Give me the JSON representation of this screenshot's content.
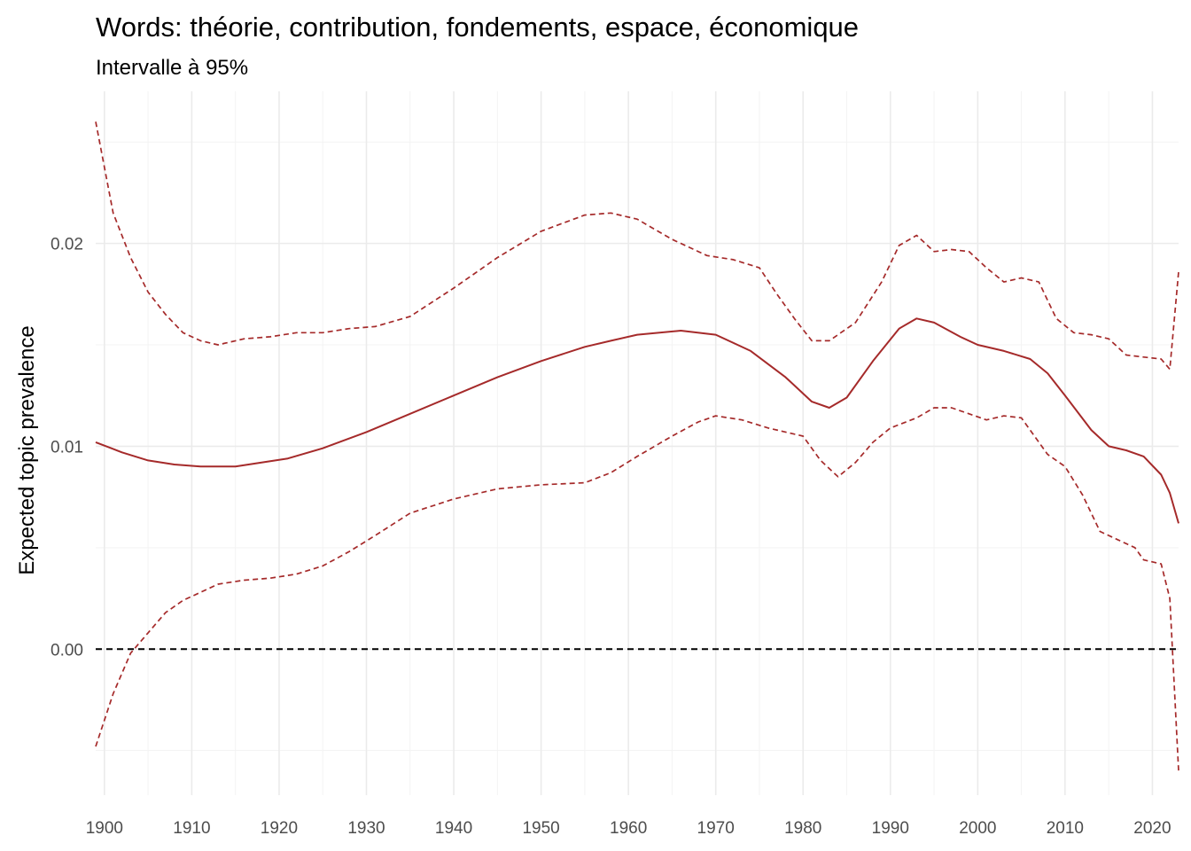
{
  "chart_data": {
    "type": "line",
    "title": "Words: théorie, contribution, fondements, espace, économique",
    "subtitle": "Intervalle à 95%",
    "xlabel": "",
    "ylabel": "Expected topic prevalence",
    "xlim": [
      1899,
      2023
    ],
    "ylim": [
      -0.0072,
      0.0275
    ],
    "x_ticks": [
      1900,
      1910,
      1920,
      1930,
      1940,
      1950,
      1960,
      1970,
      1980,
      1990,
      2000,
      2010,
      2020
    ],
    "y_ticks": [
      0.0,
      0.01,
      0.02
    ],
    "y_tick_labels": [
      "0.00",
      "0.01",
      "0.02"
    ],
    "grid": true,
    "reference_line": {
      "y": 0.0,
      "style": "dashed",
      "color": "#000000"
    },
    "series": [
      {
        "style": "solid",
        "color": "#a52a2a",
        "x": [
          1899,
          1902,
          1905,
          1908,
          1911,
          1915,
          1918,
          1921,
          1925,
          1930,
          1935,
          1940,
          1945,
          1950,
          1955,
          1958,
          1961,
          1966,
          1970,
          1974,
          1978,
          1981,
          1983,
          1985,
          1988,
          1991,
          1993,
          1995,
          1998,
          2000,
          2003,
          2006,
          2008,
          2010,
          2013,
          2015,
          2017,
          2019,
          2021,
          2022,
          2023
        ],
        "y": [
          0.0102,
          0.0097,
          0.0093,
          0.0091,
          0.009,
          0.009,
          0.0092,
          0.0094,
          0.0099,
          0.0107,
          0.0116,
          0.0125,
          0.0134,
          0.0142,
          0.0149,
          0.0152,
          0.0155,
          0.0157,
          0.0155,
          0.0147,
          0.0134,
          0.0122,
          0.0119,
          0.0124,
          0.0142,
          0.0158,
          0.0163,
          0.0161,
          0.0154,
          0.015,
          0.0147,
          0.0143,
          0.0136,
          0.0125,
          0.0108,
          0.01,
          0.0098,
          0.0095,
          0.0086,
          0.0077,
          0.0062
        ]
      },
      {
        "style": "dashed",
        "color": "#a52a2a",
        "x": [
          1899,
          1901,
          1903,
          1905,
          1907,
          1909,
          1911,
          1913,
          1916,
          1919,
          1922,
          1925,
          1928,
          1931,
          1935,
          1940,
          1945,
          1950,
          1955,
          1958,
          1961,
          1965,
          1969,
          1972,
          1975,
          1977,
          1979,
          1981,
          1983,
          1986,
          1989,
          1991,
          1993,
          1995,
          1997,
          1999,
          2001,
          2003,
          2005,
          2007,
          2009,
          2011,
          2013,
          2015,
          2017,
          2019,
          2021,
          2022,
          2023
        ],
        "y": [
          0.026,
          0.0215,
          0.0193,
          0.0176,
          0.0165,
          0.0156,
          0.0152,
          0.015,
          0.0153,
          0.0154,
          0.0156,
          0.0156,
          0.0158,
          0.0159,
          0.0164,
          0.0178,
          0.0193,
          0.0206,
          0.0214,
          0.0215,
          0.0212,
          0.0202,
          0.0194,
          0.0192,
          0.0188,
          0.0175,
          0.0163,
          0.0152,
          0.0152,
          0.0161,
          0.0181,
          0.0199,
          0.0204,
          0.0196,
          0.0197,
          0.0196,
          0.0188,
          0.0181,
          0.0183,
          0.0181,
          0.0163,
          0.0156,
          0.0155,
          0.0153,
          0.0145,
          0.0144,
          0.0143,
          0.0138,
          0.0186
        ]
      },
      {
        "style": "dashed",
        "color": "#a52a2a",
        "x": [
          1899,
          1901,
          1903,
          1905,
          1907,
          1909,
          1911,
          1913,
          1916,
          1919,
          1922,
          1925,
          1928,
          1931,
          1935,
          1940,
          1945,
          1950,
          1955,
          1958,
          1961,
          1965,
          1968,
          1970,
          1973,
          1976,
          1980,
          1982,
          1984,
          1986,
          1988,
          1990,
          1993,
          1995,
          1997,
          1999,
          2001,
          2003,
          2005,
          2008,
          2010,
          2012,
          2014,
          2016,
          2018,
          2019,
          2021,
          2022,
          2023
        ],
        "y": [
          -0.0048,
          -0.0022,
          -0.0002,
          0.0008,
          0.0018,
          0.0024,
          0.0028,
          0.0032,
          0.0034,
          0.0035,
          0.0037,
          0.0041,
          0.0048,
          0.0056,
          0.0067,
          0.0074,
          0.0079,
          0.0081,
          0.0082,
          0.0087,
          0.0095,
          0.0105,
          0.0112,
          0.0115,
          0.0113,
          0.0109,
          0.0105,
          0.0093,
          0.0085,
          0.0092,
          0.0102,
          0.0109,
          0.0114,
          0.0119,
          0.0119,
          0.0116,
          0.0113,
          0.0115,
          0.0114,
          0.0096,
          0.009,
          0.0076,
          0.0058,
          0.0054,
          0.005,
          0.0044,
          0.0042,
          0.0025,
          -0.006
        ]
      }
    ]
  }
}
